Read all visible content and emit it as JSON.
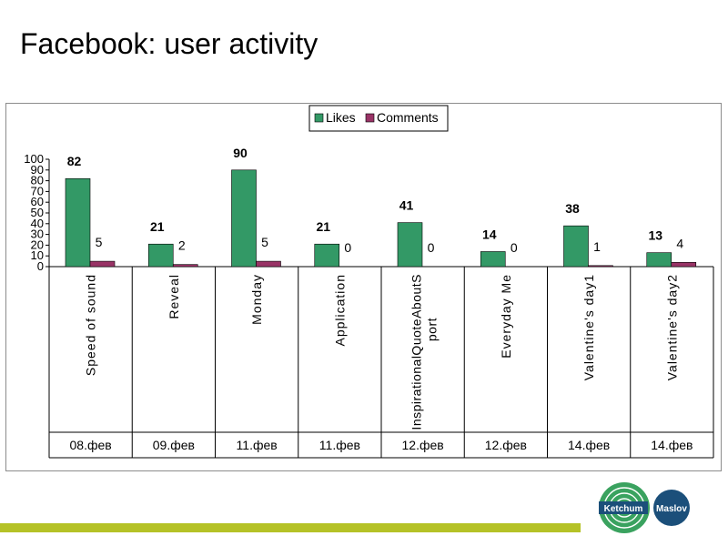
{
  "slide": {
    "title": "Facebook: user activity"
  },
  "logo": {
    "left_text": "Ketchum",
    "right_text": "Maslov"
  },
  "colors": {
    "likes": "#339966",
    "comments": "#993366",
    "footer_bar": "#b5c227",
    "logo_blue": "#1b4f7a",
    "logo_green": "#3aa25f"
  },
  "chart_data": {
    "type": "bar",
    "categories": [
      "Speed of sound",
      "Reveal",
      "Monday",
      "Application",
      "InspirationalQuoteAboutSport",
      "Everyday Me",
      "Valentine's day1",
      "Valentine's day2"
    ],
    "dates": [
      "08.фев",
      "09.фев",
      "11.фев",
      "11.фев",
      "12.фев",
      "12.фев",
      "14.фев",
      "14.фев"
    ],
    "series": [
      {
        "name": "Likes",
        "values": [
          82,
          21,
          90,
          21,
          41,
          14,
          38,
          13
        ]
      },
      {
        "name": "Comments",
        "values": [
          5,
          2,
          5,
          0,
          0,
          0,
          1,
          4
        ]
      }
    ],
    "yticks": [
      0,
      10,
      20,
      30,
      40,
      50,
      60,
      70,
      80,
      90,
      100
    ],
    "ylim": [
      0,
      100
    ],
    "legend": "top-center",
    "grid": false
  }
}
